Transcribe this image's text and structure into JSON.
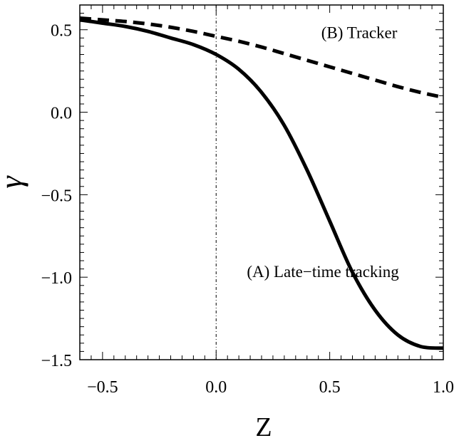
{
  "chart_data": {
    "type": "line",
    "title": "",
    "xlabel": "Z",
    "ylabel": "γ",
    "xlim": [
      -0.6,
      1.0
    ],
    "ylim": [
      -1.5,
      0.65
    ],
    "x_ticks": [
      "-0.5",
      "0.0",
      "0.5",
      "1.0"
    ],
    "y_ticks": [
      "0.5",
      "0.0",
      "-0.5",
      "-1.0",
      "-1.5"
    ],
    "x_tick_values": [
      -0.5,
      0.0,
      0.5,
      1.0
    ],
    "y_tick_values": [
      0.5,
      0.0,
      -0.5,
      -1.0,
      -1.5
    ],
    "grid": false,
    "reference_line_x": 0.0,
    "series": [
      {
        "name": "(A) Late−time tracking",
        "style": "solid",
        "x": [
          -0.6,
          -0.5,
          -0.4,
          -0.3,
          -0.2,
          -0.1,
          0.0,
          0.1,
          0.2,
          0.3,
          0.4,
          0.5,
          0.6,
          0.7,
          0.8,
          0.9,
          1.0
        ],
        "values": [
          0.56,
          0.54,
          0.52,
          0.49,
          0.45,
          0.41,
          0.35,
          0.26,
          0.12,
          -0.08,
          -0.35,
          -0.66,
          -0.97,
          -1.2,
          -1.35,
          -1.42,
          -1.43
        ]
      },
      {
        "name": "(B) Tracker",
        "style": "dashed",
        "x": [
          -0.6,
          -0.5,
          -0.4,
          -0.3,
          -0.2,
          -0.1,
          0.0,
          0.1,
          0.2,
          0.3,
          0.4,
          0.5,
          0.6,
          0.7,
          0.8,
          0.9,
          1.0
        ],
        "values": [
          0.57,
          0.56,
          0.55,
          0.535,
          0.515,
          0.49,
          0.46,
          0.43,
          0.395,
          0.355,
          0.315,
          0.275,
          0.235,
          0.195,
          0.155,
          0.12,
          0.09
        ]
      }
    ],
    "annotations": [
      {
        "text": "(A) Late−time tracking",
        "x": 0.47,
        "y": -1.0
      },
      {
        "text": "(B) Tracker",
        "x": 0.63,
        "y": 0.45
      }
    ]
  }
}
